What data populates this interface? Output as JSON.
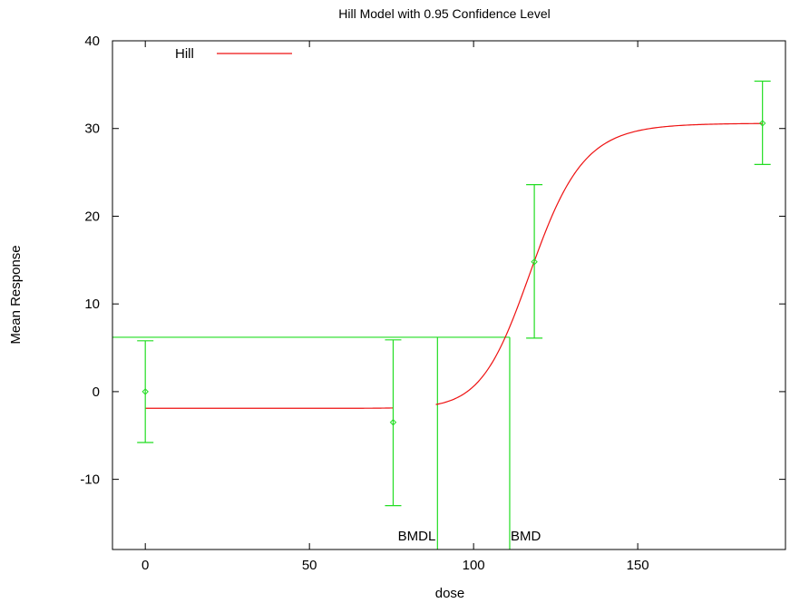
{
  "chart_data": {
    "type": "line",
    "title": "Hill Model with 0.95 Confidence Level",
    "xlabel": "dose",
    "ylabel": "Mean Response",
    "xlim": [
      -10,
      195
    ],
    "ylim": [
      -18,
      40
    ],
    "xticks": [
      0,
      50,
      100,
      150
    ],
    "yticks": [
      -10,
      0,
      10,
      20,
      30,
      40
    ],
    "legend": {
      "position": "top-left",
      "entries": [
        {
          "name": "Hill",
          "color": "#ee1111"
        }
      ]
    },
    "grid": false,
    "colors": {
      "model": "#ee1111",
      "data": "#22dd22",
      "frame": "#000000"
    },
    "series": [
      {
        "name": "Hill",
        "kind": "model-curve",
        "model": {
          "baseline": -1.9,
          "max_change": 32.5,
          "ec50": 118,
          "hill_n": 15
        },
        "segments": [
          [
            0,
            75.5
          ],
          [
            88.5,
            188
          ]
        ]
      }
    ],
    "data_points": [
      {
        "x": 0,
        "mean": 0,
        "lower": -5.8,
        "upper": 5.8
      },
      {
        "x": 75.5,
        "mean": -3.5,
        "lower": -13,
        "upper": 5.9
      },
      {
        "x": 118.5,
        "mean": 14.8,
        "lower": 6.1,
        "upper": 23.6
      },
      {
        "x": 188,
        "mean": 30.6,
        "lower": 25.9,
        "upper": 35.4
      }
    ],
    "bmr_level": 6.2,
    "bmd": {
      "label": "BMD",
      "value": 111
    },
    "bmdl": {
      "label": "BMDL",
      "value": 89
    }
  }
}
